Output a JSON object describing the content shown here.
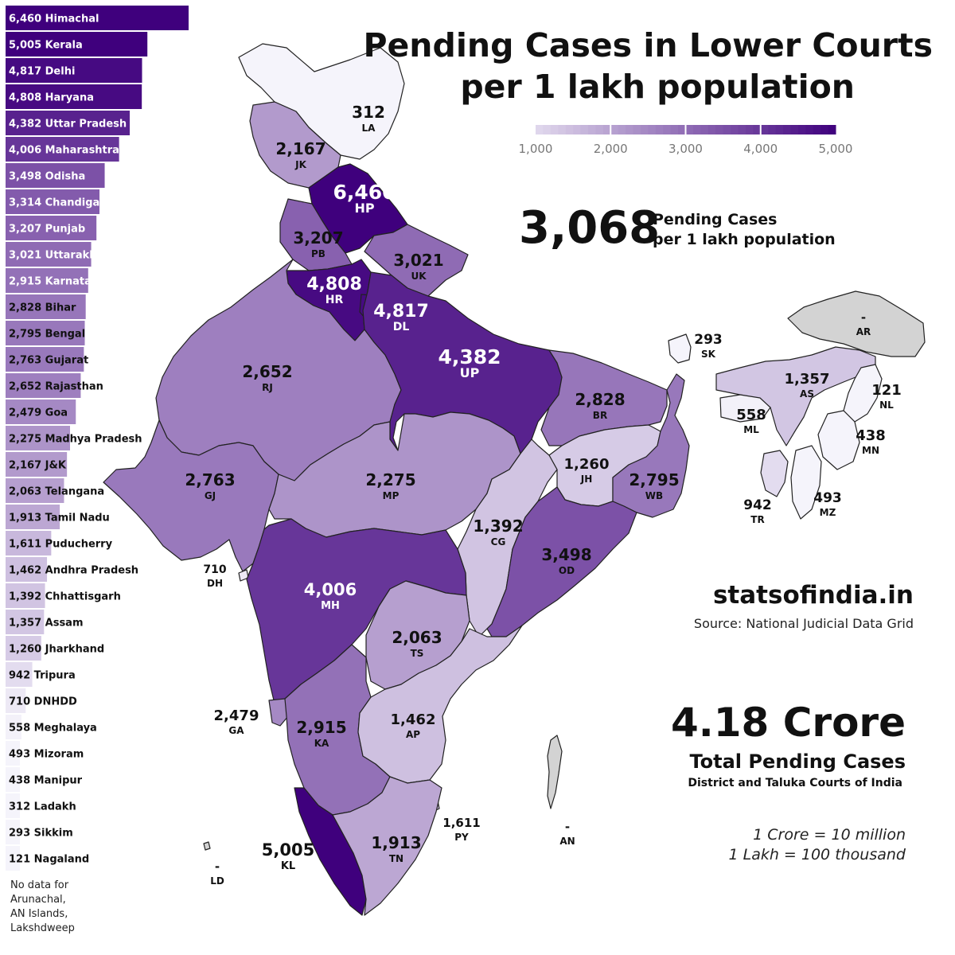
{
  "title": {
    "line1": "Pending Cases in Lower Courts",
    "line2": "per 1 lakh population"
  },
  "legend": {
    "ticks": [
      "1,000",
      "2,000",
      "3,000",
      "4,000",
      "5,000"
    ],
    "values": [
      1000,
      2000,
      3000,
      4000,
      5000
    ]
  },
  "national_average": {
    "value": "3,068",
    "label_line1": "Pending Cases",
    "label_line2": "per 1 lakh population"
  },
  "brand": "statsofindia.in",
  "source": "Source: National Judicial Data Grid",
  "total": {
    "value": "4.18 Crore",
    "label": "Total Pending Cases",
    "sublabel": "District and Taluka Courts of India"
  },
  "notes": {
    "crore": "1 Crore  = 10 million",
    "lakh": "1 Lakh  = 100 thousand"
  },
  "no_data_note": [
    "No data for",
    "Arunachal,",
    "AN Islands,",
    "Lakshdweep"
  ],
  "colors": {
    "low": "#f5f4fb",
    "high": "#3f007d",
    "no_data": "#d3d3d3",
    "bar_text_dark": "#111111",
    "bar_text_light": "#ffffff"
  },
  "chart_data": {
    "type": "bar",
    "orientation": "horizontal",
    "title": "Pending Cases in Lower Courts per 1 lakh population",
    "xlim": [
      0,
      6460
    ],
    "categories": [
      "Himachal",
      "Kerala",
      "Delhi",
      "Haryana",
      "Uttar Pradesh",
      "Maharashtra",
      "Odisha",
      "Chandigarh",
      "Punjab",
      "Uttarakhand",
      "Karnataka",
      "Bihar",
      "Bengal",
      "Gujarat",
      "Rajasthan",
      "Goa",
      "Madhya Pradesh",
      "J&K",
      "Telangana",
      "Tamil Nadu",
      "Puducherry",
      "Andhra Pradesh",
      "Chhattisgarh",
      "Assam",
      "Jharkhand",
      "Tripura",
      "DNHDD",
      "Meghalaya",
      "Mizoram",
      "Manipur",
      "Ladakh",
      "Sikkim",
      "Nagaland"
    ],
    "values": [
      6460,
      5005,
      4817,
      4808,
      4382,
      4006,
      3498,
      3314,
      3207,
      3021,
      2915,
      2828,
      2795,
      2763,
      2652,
      2479,
      2275,
      2167,
      2063,
      1913,
      1611,
      1462,
      1392,
      1357,
      1260,
      942,
      710,
      558,
      493,
      438,
      312,
      293,
      121
    ],
    "value_labels": [
      "6,460",
      "5,005",
      "4,817",
      "4,808",
      "4,382",
      "4,006",
      "3,498",
      "3,314",
      "3,207",
      "3,021",
      "2,915",
      "2,828",
      "2,795",
      "2,763",
      "2,652",
      "2,479",
      "2,275",
      "2,167",
      "2,063",
      "1,913",
      "1,611",
      "1,462",
      "1,392",
      "1,357",
      "1,260",
      "942",
      "710",
      "558",
      "493",
      "438",
      "312",
      "293",
      "121"
    ]
  },
  "map_regions": [
    {
      "code": "LA",
      "value": 312,
      "label": "312"
    },
    {
      "code": "JK",
      "value": 2167,
      "label": "2,167"
    },
    {
      "code": "HP",
      "value": 6460,
      "label": "6,460"
    },
    {
      "code": "PB",
      "value": 3207,
      "label": "3,207"
    },
    {
      "code": "UK",
      "value": 3021,
      "label": "3,021"
    },
    {
      "code": "HR",
      "value": 4808,
      "label": "4,808"
    },
    {
      "code": "DL",
      "value": 4817,
      "label": "4,817"
    },
    {
      "code": "RJ",
      "value": 2652,
      "label": "2,652"
    },
    {
      "code": "UP",
      "value": 4382,
      "label": "4,382"
    },
    {
      "code": "SK",
      "value": 293,
      "label": "293"
    },
    {
      "code": "AR",
      "value": null,
      "label": "-"
    },
    {
      "code": "AS",
      "value": 1357,
      "label": "1,357"
    },
    {
      "code": "NL",
      "value": 121,
      "label": "121"
    },
    {
      "code": "BR",
      "value": 2828,
      "label": "2,828"
    },
    {
      "code": "ML",
      "value": 558,
      "label": "558"
    },
    {
      "code": "MN",
      "value": 438,
      "label": "438"
    },
    {
      "code": "JH",
      "value": 1260,
      "label": "1,260"
    },
    {
      "code": "GJ",
      "value": 2763,
      "label": "2,763"
    },
    {
      "code": "MP",
      "value": 2275,
      "label": "2,275"
    },
    {
      "code": "WB",
      "value": 2795,
      "label": "2,795"
    },
    {
      "code": "TR",
      "value": 942,
      "label": "942"
    },
    {
      "code": "MZ",
      "value": 493,
      "label": "493"
    },
    {
      "code": "CG",
      "value": 1392,
      "label": "1,392"
    },
    {
      "code": "DH",
      "value": 710,
      "label": "710"
    },
    {
      "code": "OD",
      "value": 3498,
      "label": "3,498"
    },
    {
      "code": "MH",
      "value": 4006,
      "label": "4,006"
    },
    {
      "code": "TS",
      "value": 2063,
      "label": "2,063"
    },
    {
      "code": "GA",
      "value": 2479,
      "label": "2,479"
    },
    {
      "code": "KA",
      "value": 2915,
      "label": "2,915"
    },
    {
      "code": "AP",
      "value": 1462,
      "label": "1,462"
    },
    {
      "code": "PY",
      "value": 1611,
      "label": "1,611"
    },
    {
      "code": "AN",
      "value": null,
      "label": "-"
    },
    {
      "code": "KL",
      "value": 5005,
      "label": "5,005"
    },
    {
      "code": "TN",
      "value": 1913,
      "label": "1,913"
    },
    {
      "code": "LD",
      "value": null,
      "label": "-"
    }
  ]
}
